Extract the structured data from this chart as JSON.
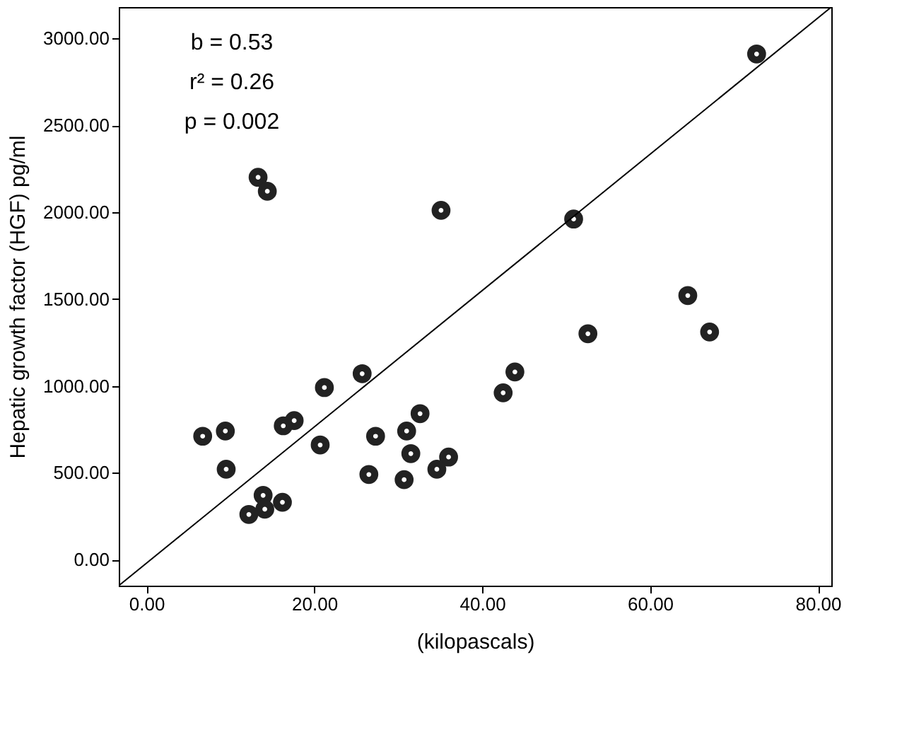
{
  "chart_data": {
    "type": "scatter",
    "xlabel": "(kilopascals)",
    "ylabel": "Hepatic growth factor (HGF) pg/ml",
    "annotations": [
      "b = 0.53",
      "r² = 0.26",
      "p = 0.002"
    ],
    "xlim": [
      -3.3,
      81.6
    ],
    "ylim": [
      -150,
      3180
    ],
    "xticks": [
      {
        "value": 0,
        "label": "0.00"
      },
      {
        "value": 20,
        "label": "20.00"
      },
      {
        "value": 40,
        "label": "40.00"
      },
      {
        "value": 60,
        "label": "60.00"
      },
      {
        "value": 80,
        "label": "80.00"
      }
    ],
    "yticks": [
      {
        "value": 0,
        "label": "0.00"
      },
      {
        "value": 500,
        "label": "500.00"
      },
      {
        "value": 1000,
        "label": "1000.00"
      },
      {
        "value": 1500,
        "label": "1500.00"
      },
      {
        "value": 2000,
        "label": "2000.00"
      },
      {
        "value": 2500,
        "label": "2500.00"
      },
      {
        "value": 3000,
        "label": "3000.00"
      }
    ],
    "grid": false,
    "series": [
      {
        "marker": "circle",
        "color": "#222222",
        "x": [
          72.7,
          13.3,
          14.4,
          35.1,
          50.9,
          64.5,
          67.1,
          52.6,
          43.9,
          42.5,
          25.7,
          21.2,
          17.6,
          16.3,
          9.4,
          6.7,
          9.5,
          20.7,
          27.3,
          32.6,
          31.0,
          31.5,
          36.0,
          34.6,
          26.5,
          30.7,
          13.9,
          16.2,
          14.1,
          12.2
        ],
        "values": [
          2910,
          2200,
          2120,
          2010,
          1960,
          1520,
          1310,
          1300,
          1080,
          960,
          1070,
          990,
          800,
          770,
          740,
          710,
          520,
          660,
          710,
          840,
          740,
          610,
          590,
          520,
          490,
          460,
          370,
          330,
          290,
          260
        ]
      },
      {
        "type": "line",
        "marker": "none",
        "color": "#000000",
        "x": [
          -3.3,
          81.6
        ],
        "values": [
          -150,
          3180
        ]
      }
    ]
  }
}
